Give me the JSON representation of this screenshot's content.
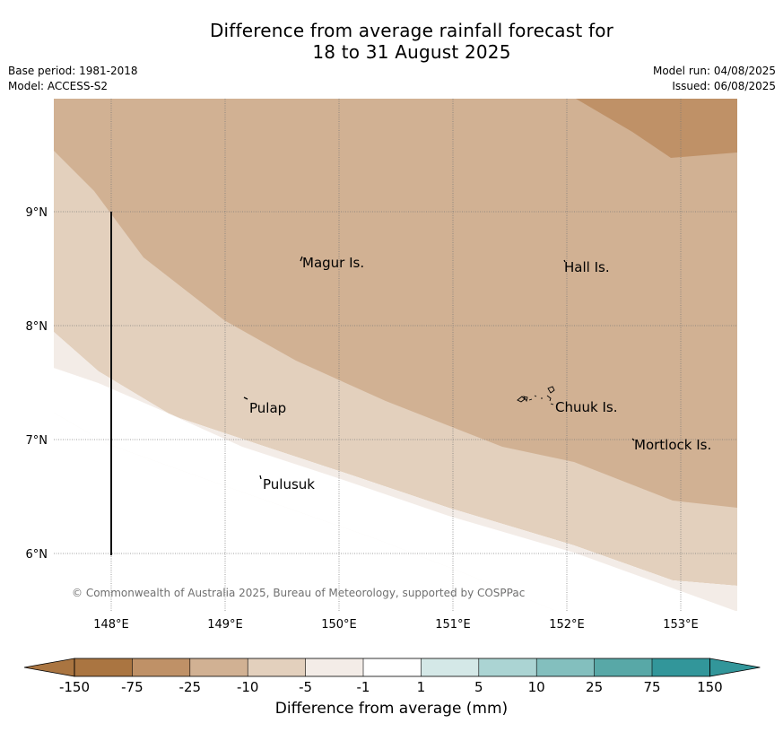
{
  "title": {
    "line1": "Difference from average rainfall forecast for",
    "line2": "18 to 31 August 2025"
  },
  "meta": {
    "base_period": "Base period: 1981-2018",
    "model": "Model: ACCESS-S2",
    "model_run": "Model run: 04/08/2025",
    "issued": "Issued: 06/08/2025"
  },
  "copyright": "© Commonwealth of Australia 2025, Bureau of Meteorology, supported by COSPPac",
  "axes": {
    "lon_ticks": [
      "148°E",
      "149°E",
      "150°E",
      "151°E",
      "152°E",
      "153°E"
    ],
    "lat_ticks": [
      "9°N",
      "8°N",
      "7°N",
      "6°N"
    ]
  },
  "places": [
    {
      "name": "Magur Is."
    },
    {
      "name": "Hall Is."
    },
    {
      "name": "Pulap"
    },
    {
      "name": "Chuuk Is."
    },
    {
      "name": "Mortlock Is."
    },
    {
      "name": "Pulusuk"
    }
  ],
  "colorbar": {
    "ticks": [
      "-150",
      "-75",
      "-25",
      "-10",
      "-5",
      "-1",
      "1",
      "5",
      "10",
      "25",
      "75",
      "150"
    ],
    "colors": [
      "#aa7541",
      "#bf9167",
      "#d1b193",
      "#e3d0bd",
      "#f3ece7",
      "#ffffff",
      "#d4e8e7",
      "#abd4d3",
      "#83bfbe",
      "#58a8a7",
      "#32969a"
    ],
    "label": "Difference from average (mm)"
  }
}
